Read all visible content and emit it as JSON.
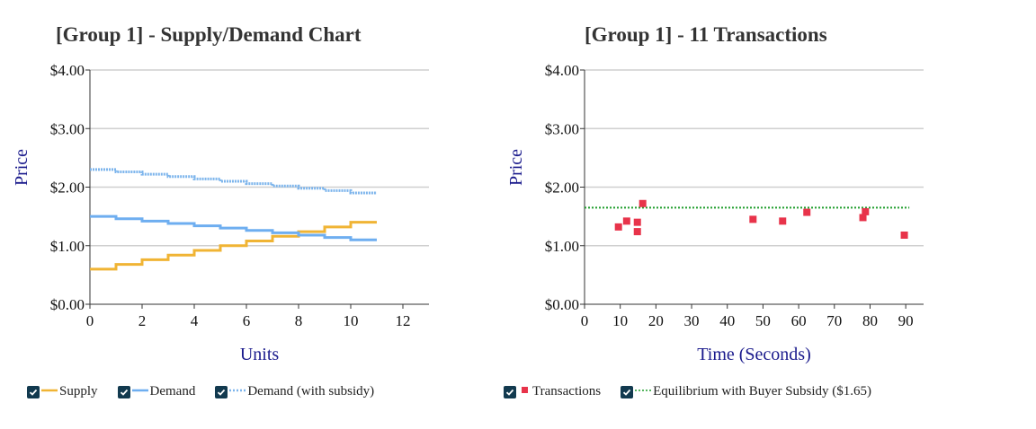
{
  "colors": {
    "supply": "#f0b434",
    "demand": "#6eaef0",
    "demand_subsidy": "#7db5ec",
    "transactions": "#e8334a",
    "equilibrium": "#1f9d2b",
    "checkbox": "#123a4f"
  },
  "left": {
    "title": "[Group 1] - Supply/Demand Chart",
    "legend": [
      {
        "label": "Supply",
        "checked": true,
        "style": "solid",
        "color_key": "supply"
      },
      {
        "label": "Demand",
        "checked": true,
        "style": "solid",
        "color_key": "demand"
      },
      {
        "label": "Demand (with subsidy)",
        "checked": true,
        "style": "dotted",
        "color_key": "demand_subsidy"
      }
    ]
  },
  "right": {
    "title": "[Group 1] - 11 Transactions",
    "legend": [
      {
        "label": "Transactions",
        "checked": true,
        "style": "square",
        "color_key": "transactions"
      },
      {
        "label": "Equilibrium with Buyer Subsidy ($1.65)",
        "checked": true,
        "style": "dotted",
        "color_key": "equilibrium"
      }
    ]
  },
  "chart_data": [
    {
      "type": "line",
      "subtype": "step",
      "title": "[Group 1] - Supply/Demand Chart",
      "xlabel": "Units",
      "ylabel": "Price",
      "xlim": [
        0,
        13
      ],
      "ylim": [
        0,
        4
      ],
      "x_ticks": [
        "0",
        "2",
        "4",
        "6",
        "8",
        "10",
        "12"
      ],
      "y_ticks": [
        "$0.00",
        "$1.00",
        "$2.00",
        "$3.00",
        "$4.00"
      ],
      "grid": "horizontal",
      "legend_position": "bottom",
      "series": [
        {
          "name": "Supply",
          "color_key": "supply",
          "style": "solid",
          "x": [
            0,
            1,
            2,
            3,
            4,
            5,
            6,
            7,
            8,
            9,
            10,
            11
          ],
          "values": [
            0.6,
            0.68,
            0.76,
            0.84,
            0.92,
            1.0,
            1.08,
            1.16,
            1.24,
            1.32,
            1.4,
            1.4
          ]
        },
        {
          "name": "Demand",
          "color_key": "demand",
          "style": "solid",
          "x": [
            0,
            1,
            2,
            3,
            4,
            5,
            6,
            7,
            8,
            9,
            10,
            11
          ],
          "values": [
            1.5,
            1.46,
            1.42,
            1.38,
            1.34,
            1.3,
            1.26,
            1.22,
            1.18,
            1.14,
            1.1,
            1.1
          ]
        },
        {
          "name": "Demand (with subsidy)",
          "color_key": "demand_subsidy",
          "style": "dotted",
          "x": [
            0,
            1,
            2,
            3,
            4,
            5,
            6,
            7,
            8,
            9,
            10,
            11
          ],
          "values": [
            2.3,
            2.26,
            2.22,
            2.18,
            2.14,
            2.1,
            2.06,
            2.02,
            1.98,
            1.94,
            1.9,
            1.9
          ]
        }
      ]
    },
    {
      "type": "scatter",
      "title": "[Group 1] - 11 Transactions",
      "xlabel": "Time (Seconds)",
      "ylabel": "Price",
      "xlim": [
        0,
        95
      ],
      "ylim": [
        0,
        4
      ],
      "x_ticks": [
        "0",
        "10",
        "20",
        "30",
        "40",
        "50",
        "60",
        "70",
        "80",
        "90"
      ],
      "y_ticks": [
        "$0.00",
        "$1.00",
        "$2.00",
        "$3.00",
        "$4.00"
      ],
      "grid": "horizontal",
      "legend_position": "bottom",
      "series": [
        {
          "name": "Transactions",
          "color_key": "transactions",
          "points": [
            [
              9.5,
              1.32
            ],
            [
              11.8,
              1.42
            ],
            [
              14.8,
              1.4
            ],
            [
              14.8,
              1.24
            ],
            [
              16.3,
              1.72
            ],
            [
              47.2,
              1.45
            ],
            [
              55.5,
              1.42
            ],
            [
              62.3,
              1.57
            ],
            [
              78,
              1.48
            ],
            [
              78.7,
              1.58
            ],
            [
              89.6,
              1.18
            ]
          ]
        }
      ],
      "reference_lines": [
        {
          "name": "Equilibrium with Buyer Subsidy ($1.65)",
          "color_key": "equilibrium",
          "y": 1.65,
          "x_range": [
            0,
            91
          ]
        }
      ]
    }
  ]
}
